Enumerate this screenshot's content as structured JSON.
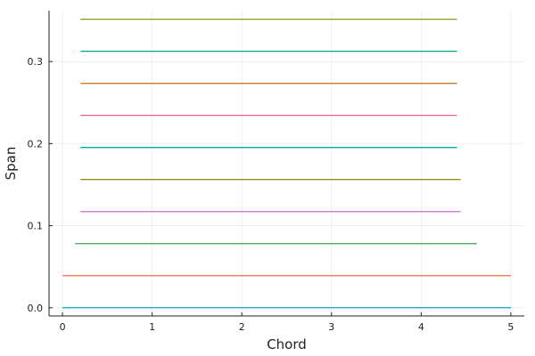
{
  "chart_data": {
    "type": "line",
    "title": "",
    "xlabel": "Chord",
    "ylabel": "Span",
    "xlim": [
      -0.15,
      5.15
    ],
    "ylim": [
      -0.01,
      0.362
    ],
    "x_ticks": [
      0,
      1,
      2,
      3,
      4,
      5
    ],
    "x_tick_labels": [
      "0",
      "1",
      "2",
      "3",
      "4",
      "5"
    ],
    "y_ticks": [
      0.0,
      0.1,
      0.2,
      0.3
    ],
    "y_tick_labels": [
      "0.0",
      "0.1",
      "0.2",
      "0.3"
    ],
    "grid": true,
    "legend": "none",
    "series": [
      {
        "x": [
          0.0,
          5.0
        ],
        "y": [
          0.0,
          0.0
        ],
        "color": "#00a9c9"
      },
      {
        "x": [
          0.0,
          5.0
        ],
        "y": [
          0.0391,
          0.0391
        ],
        "color": "#e26f46"
      },
      {
        "x": [
          0.14,
          4.62
        ],
        "y": [
          0.0781,
          0.0781
        ],
        "color": "#3da44d"
      },
      {
        "x": [
          0.2,
          4.44
        ],
        "y": [
          0.1172,
          0.1172
        ],
        "color": "#c271d2"
      },
      {
        "x": [
          0.2,
          4.44
        ],
        "y": [
          0.1563,
          0.1563
        ],
        "color": "#9b8d1f"
      },
      {
        "x": [
          0.2,
          4.4
        ],
        "y": [
          0.1953,
          0.1953
        ],
        "color": "#00a9ad"
      },
      {
        "x": [
          0.2,
          4.4
        ],
        "y": [
          0.2344,
          0.2344
        ],
        "color": "#ed5e93"
      },
      {
        "x": [
          0.2,
          4.4
        ],
        "y": [
          0.2734,
          0.2734
        ],
        "color": "#c68125"
      },
      {
        "x": [
          0.2,
          4.4
        ],
        "y": [
          0.3125,
          0.3125
        ],
        "color": "#00a98d"
      },
      {
        "x": [
          0.2,
          4.4
        ],
        "y": [
          0.3516,
          0.3516
        ],
        "color": "#8e971d"
      }
    ]
  }
}
